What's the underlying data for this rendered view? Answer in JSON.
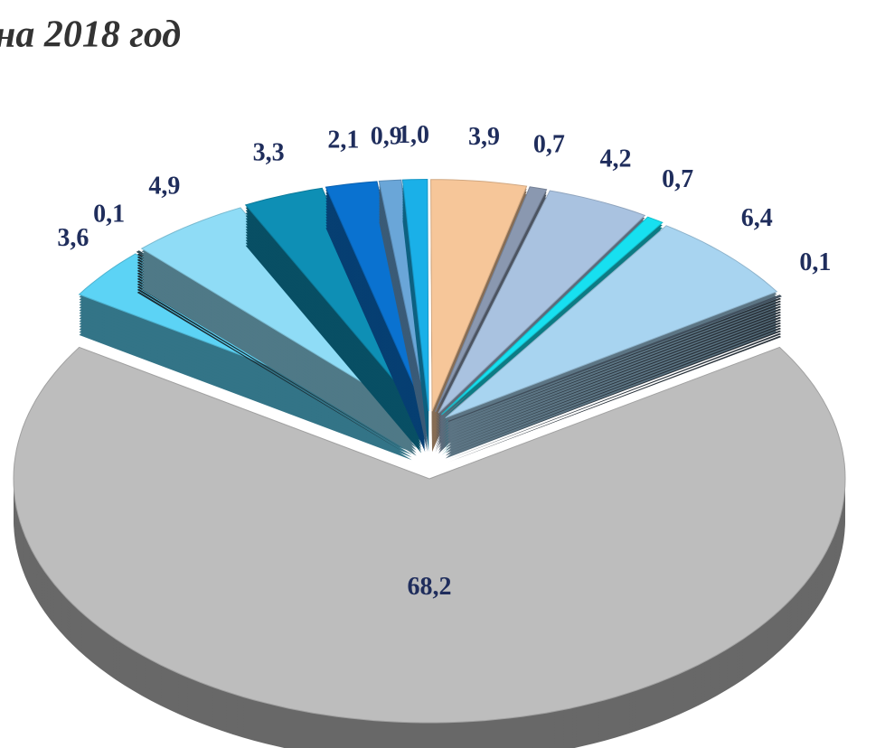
{
  "chart_data": {
    "type": "pie",
    "title": "на 2018 год",
    "categories": [
      null,
      null,
      null,
      null,
      null,
      null,
      null,
      null,
      null,
      null,
      null,
      null,
      null,
      null
    ],
    "values": [
      3.6,
      0.1,
      4.9,
      3.3,
      2.1,
      0.9,
      1.0,
      3.9,
      0.7,
      4.2,
      0.7,
      6.4,
      0.1,
      68.2
    ],
    "value_labels": [
      "3,6",
      "0,1",
      "4,9",
      "3,3",
      "2,1",
      "0,9",
      "1,0",
      "3,9",
      "0,7",
      "4,2",
      "0,7",
      "6,4",
      "0,1",
      "68,2"
    ],
    "colors": [
      "#5cd3f5",
      "#2f4f5a",
      "#8fdcf6",
      "#0e8fb5",
      "#0a72d0",
      "#6aa6d8",
      "#1ab0e8",
      "#f6c699",
      "#8a98b0",
      "#a9c2e0",
      "#17e0f0",
      "#a8d4f0",
      "#4a5a6a",
      "#bdbdbd"
    ]
  }
}
